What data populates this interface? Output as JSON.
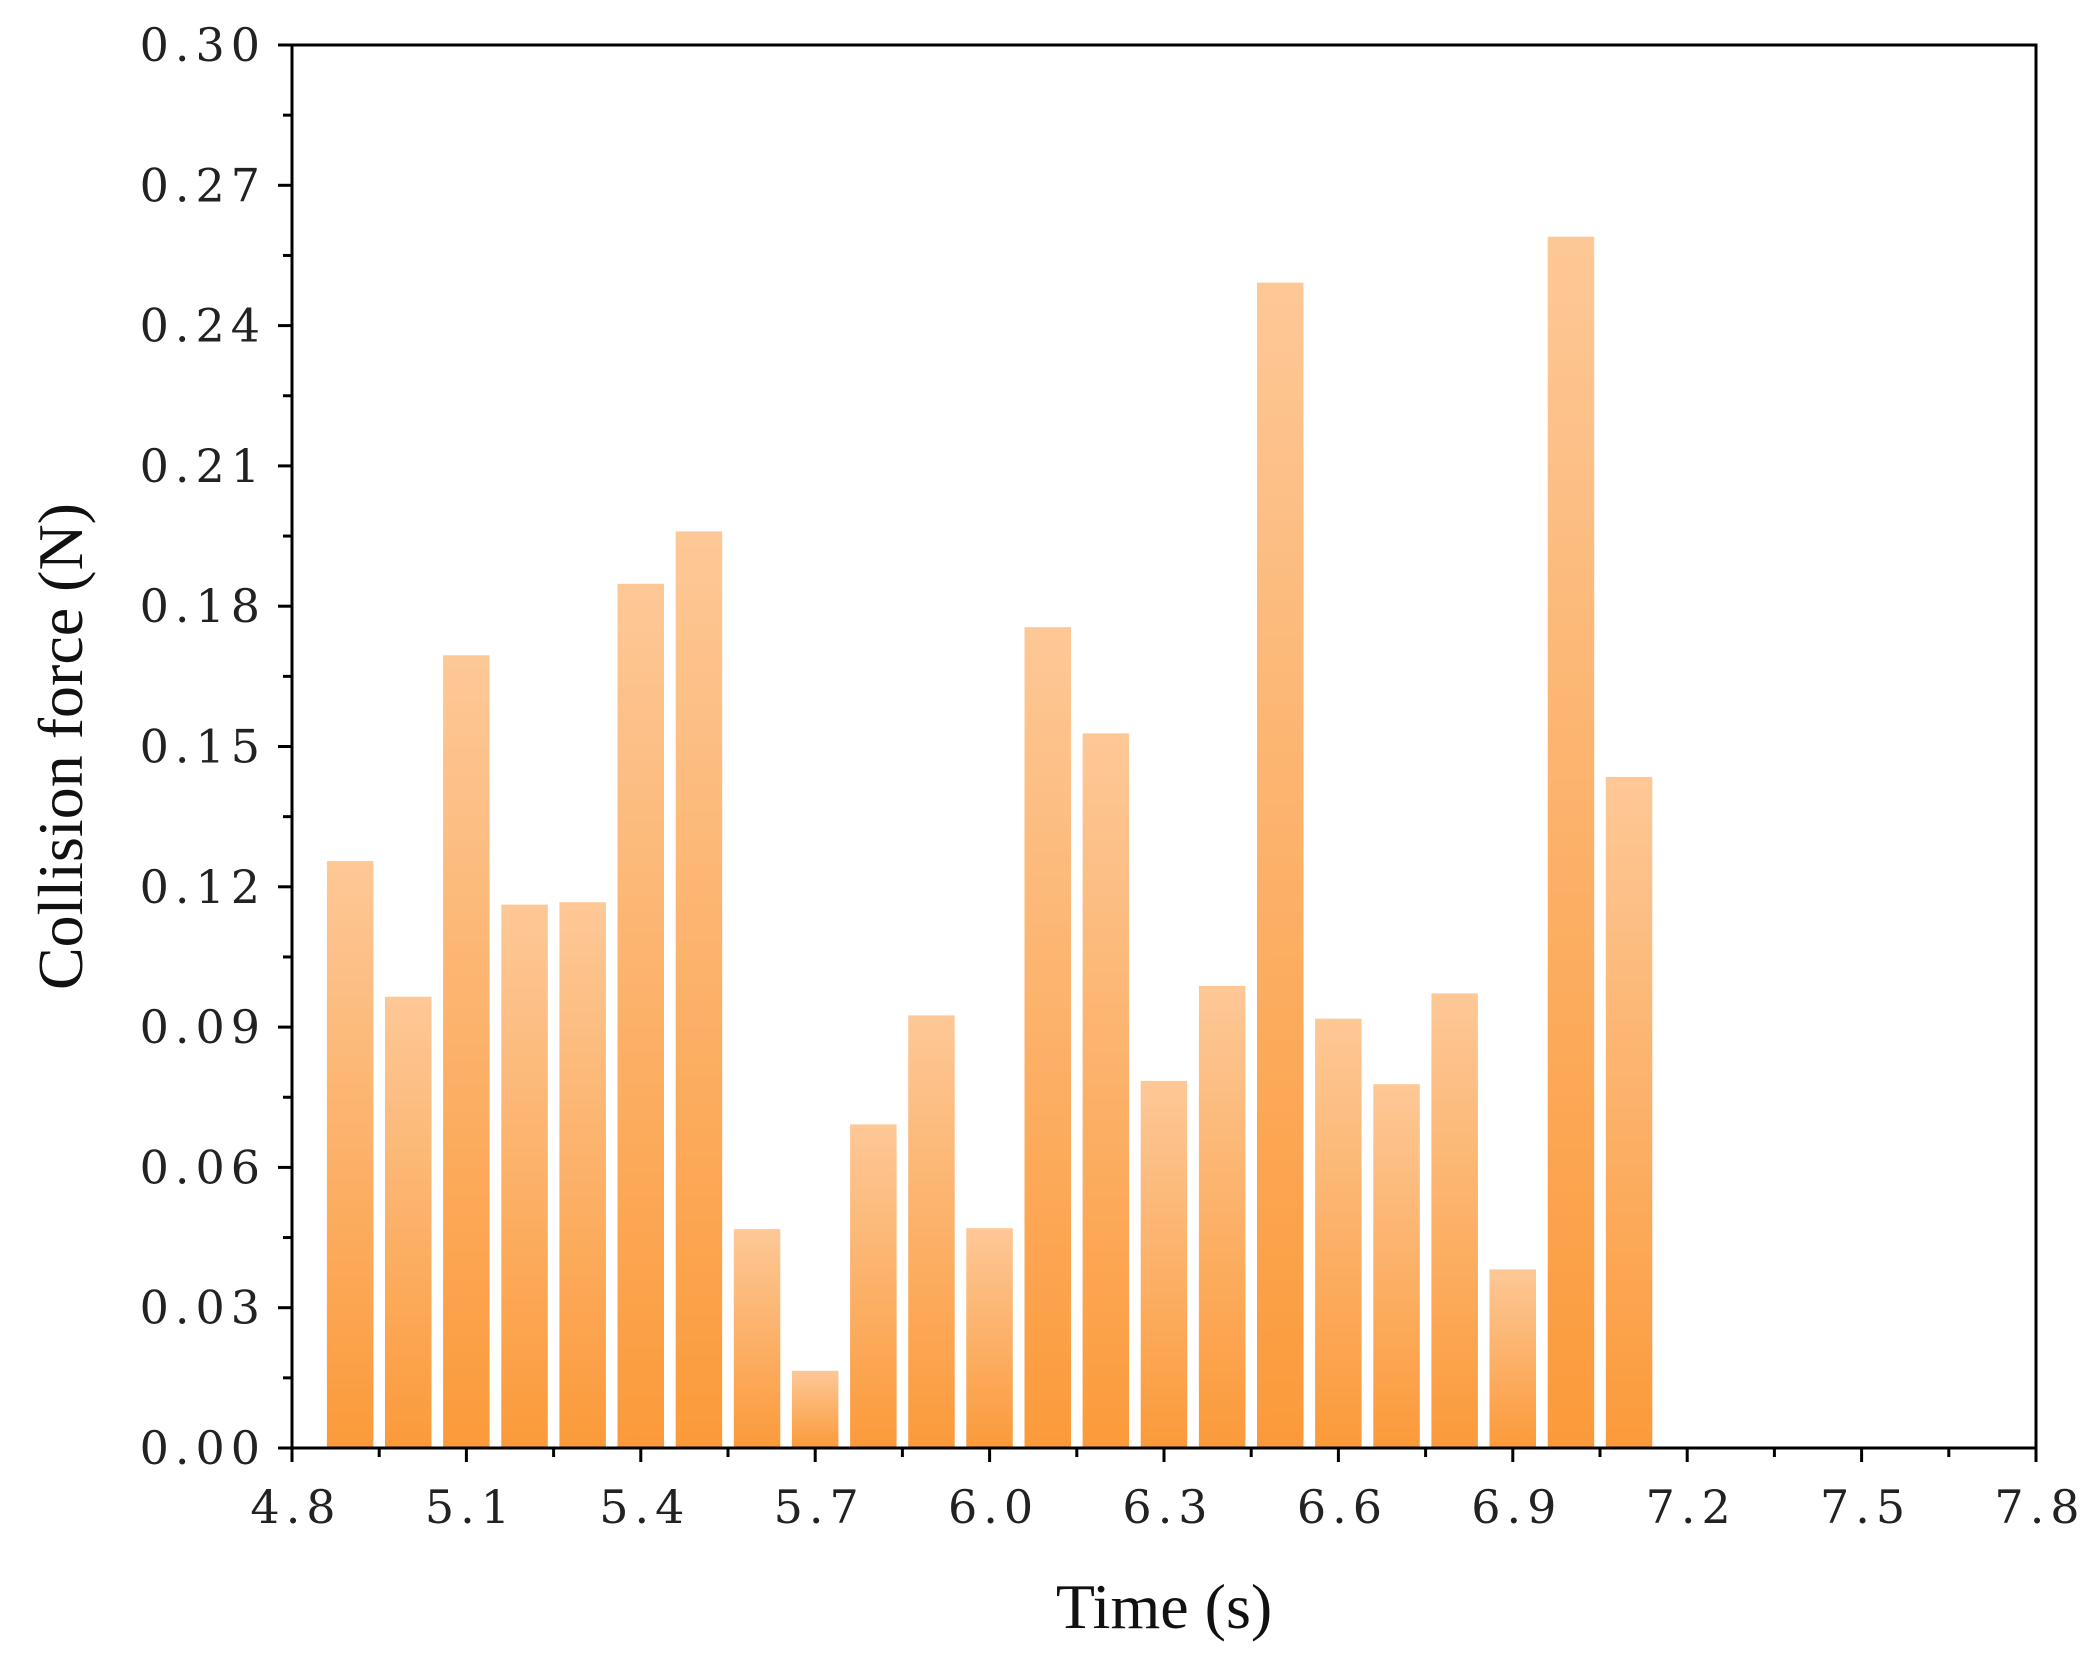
{
  "chart_data": {
    "type": "bar",
    "xlabel": "Time  (s)",
    "ylabel": "Collision force  (N)",
    "xlim": [
      4.8,
      7.8
    ],
    "ylim": [
      0.0,
      0.3
    ],
    "xticks": [
      "4.8",
      "5.1",
      "5.4",
      "5.7",
      "6.0",
      "6.3",
      "6.6",
      "6.9",
      "7.2",
      "7.5",
      "7.8"
    ],
    "yticks": [
      "0.00",
      "0.03",
      "0.06",
      "0.09",
      "0.12",
      "0.15",
      "0.18",
      "0.21",
      "0.24",
      "0.27",
      "0.30"
    ],
    "bar_width": 0.08,
    "x": [
      4.9,
      5.0,
      5.1,
      5.2,
      5.3,
      5.4,
      5.5,
      5.6,
      5.7,
      5.8,
      5.9,
      6.0,
      6.1,
      6.2,
      6.3,
      6.4,
      6.5,
      6.6,
      6.7,
      6.8,
      6.9,
      7.0,
      7.1
    ],
    "values": [
      0.1255,
      0.0965,
      0.1695,
      0.1162,
      0.1167,
      0.1848,
      0.196,
      0.0468,
      0.0165,
      0.0692,
      0.0925,
      0.047,
      0.1755,
      0.1528,
      0.0785,
      0.0988,
      0.2492,
      0.0918,
      0.0778,
      0.0972,
      0.0382,
      0.259,
      0.1435
    ],
    "colors": {
      "bar_top": "#fdc897",
      "bar_bottom": "#fb9a3a",
      "axis": "#000000"
    },
    "grid": false,
    "legend": "none"
  }
}
